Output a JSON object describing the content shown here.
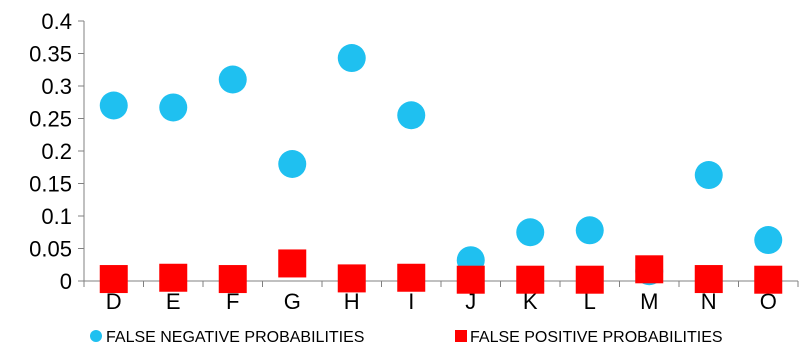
{
  "chart_data": {
    "type": "scatter",
    "categories": [
      "D",
      "E",
      "F",
      "G",
      "H",
      "I",
      "J",
      "K",
      "L",
      "M",
      "N",
      "O"
    ],
    "ylim": [
      0,
      0.4
    ],
    "yticks": [
      "0",
      "0.05",
      "0.1",
      "0.15",
      "0.2",
      "0.25",
      "0.3",
      "0.35",
      "0.4"
    ],
    "grid": false,
    "legend_position": "bottom",
    "series": [
      {
        "name": "FALSE NEGATIVE PROBABILITIES",
        "marker": "circle",
        "color": "#1FC0F0",
        "values": [
          0.27,
          0.267,
          0.31,
          0.18,
          0.343,
          0.255,
          0.032,
          0.075,
          0.078,
          0.015,
          0.163,
          0.063
        ]
      },
      {
        "name": "FALSE POSITIVE PROBABILITIES",
        "marker": "square",
        "color": "#FF0000",
        "values": [
          0.003,
          0.005,
          0.003,
          0.027,
          0.004,
          0.005,
          0.002,
          0.002,
          0.002,
          0.018,
          0.003,
          0.002
        ]
      }
    ]
  }
}
